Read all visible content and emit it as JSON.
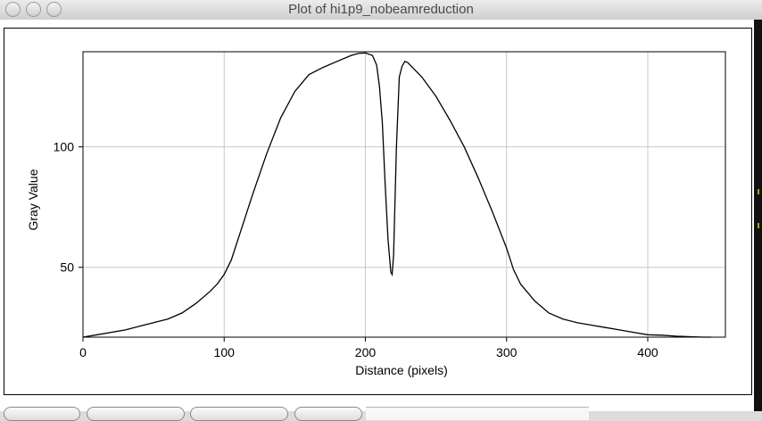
{
  "window": {
    "title": "Plot of hi1p9_nobeamreduction"
  },
  "chart_data": {
    "type": "line",
    "title": "",
    "xlabel": "Distance (pixels)",
    "ylabel": "Gray Value",
    "xlim": [
      0,
      455
    ],
    "ylim": [
      21,
      139.5
    ],
    "xticks": [
      0,
      100,
      200,
      300,
      400
    ],
    "yticks": [
      50,
      100
    ],
    "grid": true,
    "series": [
      {
        "x": [
          0,
          5,
          10,
          20,
          30,
          40,
          50,
          60,
          70,
          80,
          90,
          95,
          100,
          105,
          110,
          120,
          130,
          140,
          150,
          160,
          170,
          180,
          190,
          195,
          200,
          205,
          208,
          210,
          212,
          214,
          216,
          218,
          219,
          220,
          222,
          224,
          226,
          228,
          230,
          235,
          240,
          250,
          260,
          270,
          280,
          290,
          300,
          305,
          310,
          320,
          330,
          340,
          350,
          360,
          370,
          380,
          390,
          400,
          410,
          420,
          430,
          440,
          445
        ],
        "y": [
          21,
          21.5,
          22,
          23,
          24,
          25.5,
          27,
          28.5,
          31,
          35,
          40,
          43,
          47,
          53,
          62,
          80,
          97,
          112,
          123,
          130,
          133,
          135.5,
          138,
          138.8,
          139,
          138,
          134,
          125,
          110,
          85,
          62,
          48,
          47,
          55,
          100,
          129,
          133.5,
          135.5,
          135,
          132,
          129,
          121,
          111,
          100,
          87,
          73,
          58,
          49,
          43,
          36,
          31,
          28.5,
          27,
          26,
          25,
          24,
          23,
          22,
          21.8,
          21.4,
          21.2,
          21,
          21
        ]
      }
    ]
  },
  "toolbar": {
    "buttons": [
      "",
      "",
      "",
      ""
    ]
  }
}
